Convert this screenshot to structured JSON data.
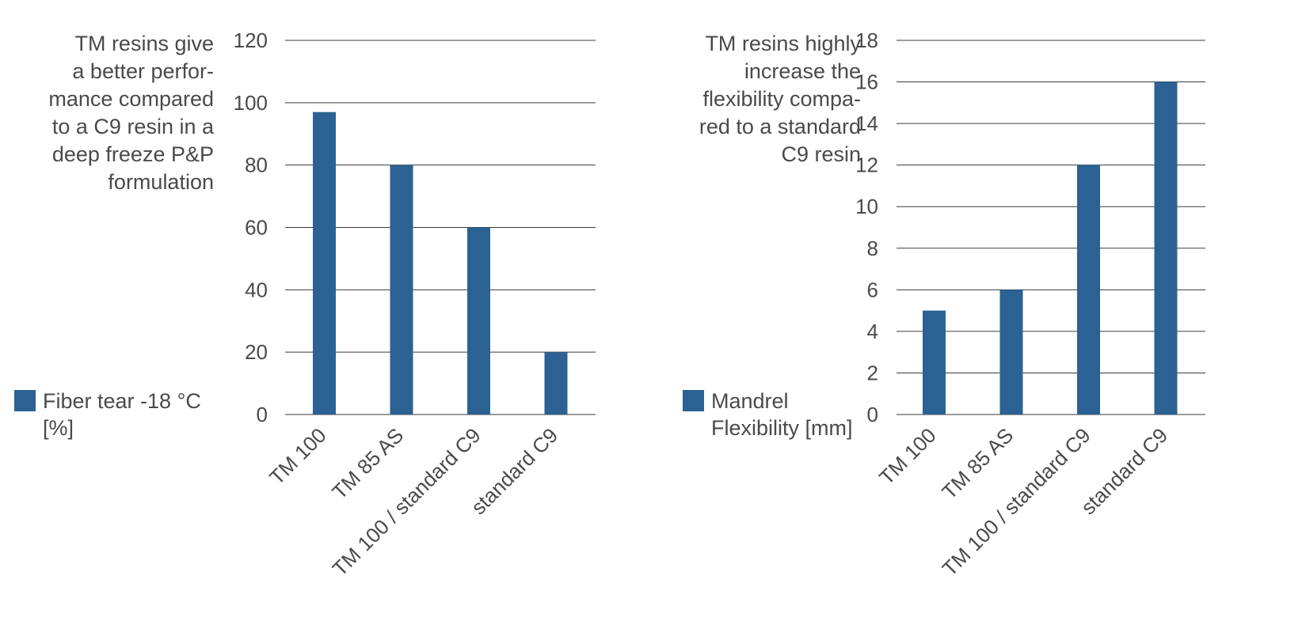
{
  "chart_data": [
    {
      "type": "bar",
      "caption_lines": [
        "TM resins give",
        "a better perfor-",
        "mance compared",
        "to a C9 resin in a",
        "deep freeze P&P",
        "formulation"
      ],
      "legend_lines": [
        "Fiber tear -18 °C",
        "[%]"
      ],
      "categories": [
        "TM 100",
        "TM 85 AS",
        "TM 100 / standard C9",
        "standard C9"
      ],
      "values": [
        97,
        80,
        60,
        20
      ],
      "ylim": [
        0,
        120
      ],
      "yticks": [
        "0",
        "20",
        "40",
        "60",
        "80",
        "100",
        "120"
      ],
      "grid": true,
      "legend_position": "left",
      "bar_color": "#2b6293"
    },
    {
      "type": "bar",
      "caption_lines": [
        "TM resins highly",
        "increase the",
        "flexibility compa-",
        "red to a standard",
        "C9 resin"
      ],
      "legend_lines": [
        "Mandrel",
        "Flexibility [mm]"
      ],
      "categories": [
        "TM 100",
        "TM 85 AS",
        "TM 100 / standard C9",
        "standard C9"
      ],
      "values": [
        5,
        6,
        12,
        16
      ],
      "ylim": [
        0,
        18
      ],
      "yticks": [
        "0",
        "2",
        "4",
        "6",
        "8",
        "10",
        "12",
        "14",
        "16",
        "18"
      ],
      "grid": true,
      "legend_position": "left",
      "bar_color": "#2b6293"
    }
  ]
}
